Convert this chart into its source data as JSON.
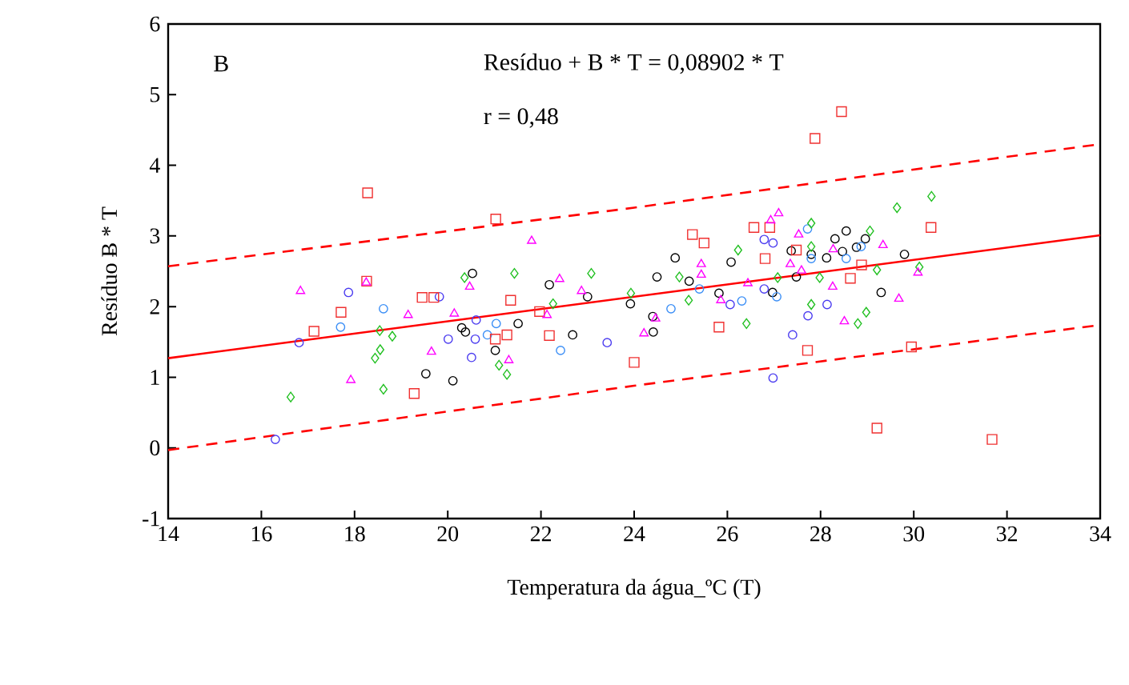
{
  "chart_data": {
    "type": "scatter",
    "xlabel": "Temperatura da água_ºC (T)",
    "ylabel": "Resíduo Ƀ * T",
    "annotations": [
      "B",
      "Resíduo + B * T = 0,08902 * T",
      "r = 0,48"
    ],
    "xlim": [
      14,
      34
    ],
    "ylim": [
      -1,
      6
    ],
    "xticks": [
      14,
      16,
      18,
      20,
      22,
      24,
      26,
      28,
      30,
      32,
      34
    ],
    "yticks": [
      -1,
      0,
      1,
      2,
      3,
      4,
      5,
      6
    ],
    "series": [
      {
        "color": "#000000",
        "marker": "circle",
        "x": [
          20.53,
          20.3,
          20.38,
          19.53,
          20.11,
          21.02,
          21.51,
          22.18,
          22.68,
          23.0,
          23.92,
          24.4,
          24.41,
          24.49,
          24.88,
          25.18,
          25.82,
          26.08,
          27.37,
          27.48,
          26.97,
          27.8,
          28.13,
          28.31,
          28.55,
          28.47,
          28.77,
          28.96,
          29.3,
          29.8
        ],
        "values": [
          2.47,
          1.7,
          1.64,
          1.05,
          0.95,
          1.38,
          1.76,
          2.31,
          1.6,
          2.14,
          2.04,
          1.86,
          1.64,
          2.42,
          2.69,
          2.36,
          2.19,
          2.63,
          2.79,
          2.42,
          2.2,
          2.74,
          2.69,
          2.96,
          3.07,
          2.78,
          2.84,
          2.96,
          2.2,
          2.74
        ]
      },
      {
        "color": "#4b3cf0",
        "marker": "circle",
        "x": [
          16.3,
          16.81,
          17.87,
          19.82,
          20.01,
          20.51,
          20.59,
          20.61,
          23.42,
          26.98,
          27.4,
          27.73,
          28.14,
          26.79,
          26.98,
          26.06,
          26.79
        ],
        "values": [
          0.12,
          1.49,
          2.2,
          2.14,
          1.54,
          1.28,
          1.54,
          1.81,
          1.49,
          0.99,
          1.6,
          1.87,
          2.03,
          2.95,
          2.9,
          2.03,
          2.25
        ]
      },
      {
        "color": "#3a8ef6",
        "marker": "circle",
        "x": [
          17.7,
          18.62,
          21.04,
          20.85,
          22.42,
          24.79,
          25.4,
          26.31,
          27.06,
          27.8,
          28.55,
          28.87,
          27.72
        ],
        "values": [
          1.71,
          1.97,
          1.76,
          1.6,
          1.38,
          1.97,
          2.25,
          2.08,
          2.14,
          2.68,
          2.68,
          2.85,
          3.1
        ]
      },
      {
        "color": "#f03030",
        "marker": "square",
        "x": [
          18.28,
          21.03,
          18.26,
          17.71,
          17.13,
          19.45,
          19.7,
          19.28,
          21.35,
          21.27,
          21.02,
          22.18,
          21.97,
          24.0,
          28.45,
          27.88,
          25.25,
          25.5,
          26.57,
          26.91,
          27.48,
          26.81,
          28.88,
          28.64,
          30.37,
          25.82,
          27.72,
          29.95,
          29.21,
          31.68
        ],
        "values": [
          3.61,
          3.24,
          2.36,
          1.92,
          1.65,
          2.13,
          2.13,
          0.77,
          2.09,
          1.6,
          1.54,
          1.59,
          1.93,
          1.21,
          4.76,
          4.38,
          3.02,
          2.9,
          3.12,
          3.12,
          2.8,
          2.68,
          2.59,
          2.4,
          3.12,
          1.71,
          1.38,
          1.43,
          0.28,
          0.12
        ]
      },
      {
        "color": "#22c022",
        "marker": "diamond",
        "x": [
          16.63,
          18.62,
          18.44,
          18.55,
          18.54,
          18.81,
          20.36,
          21.43,
          21.1,
          21.27,
          22.26,
          23.08,
          23.93,
          24.97,
          25.17,
          26.23,
          26.41,
          27.8,
          27.8,
          27.98,
          27.8,
          29.06,
          29.21,
          28.8,
          28.98,
          29.64,
          30.38,
          30.12,
          27.08
        ],
        "values": [
          0.72,
          0.83,
          1.27,
          1.39,
          1.66,
          1.58,
          2.41,
          2.47,
          1.17,
          1.04,
          2.04,
          2.47,
          2.19,
          2.42,
          2.09,
          2.8,
          1.76,
          3.18,
          2.85,
          2.41,
          2.03,
          3.07,
          2.52,
          1.76,
          1.92,
          3.4,
          3.56,
          2.56,
          2.41
        ]
      },
      {
        "color": "#ff00ff",
        "marker": "triangle",
        "x": [
          16.84,
          17.92,
          18.25,
          19.15,
          19.65,
          20.14,
          20.47,
          21.31,
          21.8,
          22.4,
          22.13,
          22.87,
          24.21,
          24.46,
          25.44,
          25.44,
          26.44,
          27.1,
          26.93,
          27.53,
          27.35,
          27.59,
          28.27,
          28.26,
          28.51,
          29.34,
          29.68,
          30.09,
          25.86
        ],
        "values": [
          2.22,
          0.96,
          2.34,
          1.88,
          1.36,
          1.9,
          2.28,
          1.24,
          2.93,
          2.39,
          1.88,
          2.22,
          1.62,
          1.83,
          2.6,
          2.45,
          2.33,
          3.32,
          3.22,
          3.02,
          2.6,
          2.51,
          2.81,
          2.28,
          1.79,
          2.87,
          2.11,
          2.48,
          2.09
        ]
      },
      {
        "type": "line",
        "color": "#ff0000",
        "line_style": "solid",
        "x": [
          14,
          34
        ],
        "values": [
          1.27,
          3.01
        ]
      },
      {
        "type": "line",
        "color": "#ff0000",
        "line_style": "dashed",
        "x": [
          14,
          24,
          34
        ],
        "values": [
          2.57,
          3.4,
          4.3
        ]
      },
      {
        "type": "line",
        "color": "#ff0000",
        "line_style": "dashed",
        "x": [
          14,
          24,
          34
        ],
        "values": [
          -0.03,
          0.88,
          1.74
        ]
      }
    ]
  }
}
